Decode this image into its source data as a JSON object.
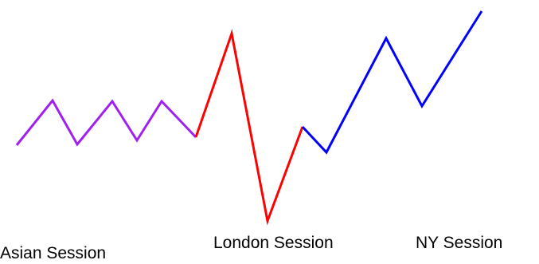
{
  "sessions": [
    {
      "label": "Asian Session",
      "color": "#a020f0"
    },
    {
      "label": "London Session",
      "color": "#ff0000"
    },
    {
      "label": "NY Session",
      "color": "#0000ff"
    }
  ]
}
